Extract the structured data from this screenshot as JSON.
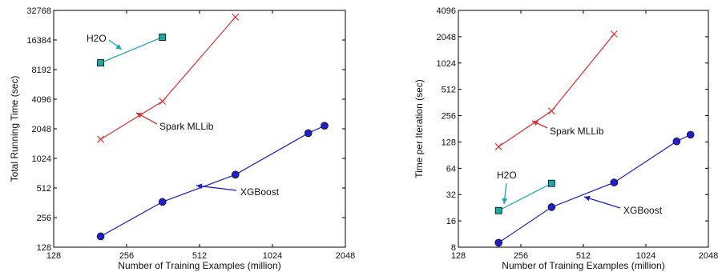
{
  "chart_data": [
    {
      "type": "line",
      "xlabel": "Number of Training Examples (million)",
      "ylabel": "Total Running Time (sec)",
      "x_scale": "log2",
      "y_scale": "log2",
      "xlim": [
        128,
        2048
      ],
      "ylim": [
        128,
        32768
      ],
      "x_ticks": [
        "128",
        "256",
        "512",
        "1024",
        "2048"
      ],
      "y_ticks": [
        "128",
        "256",
        "512",
        "1024",
        "2048",
        "4096",
        "8192",
        "16384",
        "32768"
      ],
      "series": [
        {
          "name": "H2O",
          "color": "#1aa8a8",
          "marker": "square",
          "points": [
            [
              200,
              9600
            ],
            [
              360,
              17500
            ]
          ]
        },
        {
          "name": "Spark MLLib",
          "color": "#e03030",
          "marker": "x",
          "points": [
            [
              200,
              1600
            ],
            [
              360,
              3900
            ],
            [
              720,
              28000
            ]
          ]
        },
        {
          "name": "XGBoost",
          "color": "#2020c8",
          "marker": "circle",
          "points": [
            [
              200,
              165
            ],
            [
              360,
              370
            ],
            [
              720,
              700
            ],
            [
              1440,
              1850
            ],
            [
              1680,
              2200
            ]
          ]
        }
      ],
      "annotations": [
        {
          "text": "H2O",
          "series": "H2O"
        },
        {
          "text": "Spark MLLib",
          "series": "Spark MLLib"
        },
        {
          "text": "XGBoost",
          "series": "XGBoost"
        }
      ]
    },
    {
      "type": "line",
      "xlabel": "Number of Training Examples (million)",
      "ylabel": "Time per Iteration (sec)",
      "x_scale": "log2",
      "y_scale": "log2",
      "xlim": [
        128,
        2048
      ],
      "ylim": [
        8,
        4096
      ],
      "x_ticks": [
        "128",
        "256",
        "512",
        "1024",
        "2048"
      ],
      "y_ticks": [
        "8",
        "16",
        "32",
        "64",
        "128",
        "256",
        "512",
        "1024",
        "2048",
        "4096"
      ],
      "series": [
        {
          "name": "H2O",
          "color": "#1aa8a8",
          "marker": "square",
          "points": [
            [
              200,
              21
            ],
            [
              360,
              43
            ]
          ]
        },
        {
          "name": "Spark MLLib",
          "color": "#e03030",
          "marker": "x",
          "points": [
            [
              200,
              113
            ],
            [
              360,
              290
            ],
            [
              720,
              2200
            ]
          ]
        },
        {
          "name": "XGBoost",
          "color": "#2020c8",
          "marker": "circle",
          "points": [
            [
              200,
              9
            ],
            [
              360,
              23
            ],
            [
              720,
              44
            ],
            [
              1440,
              130
            ],
            [
              1680,
              155
            ]
          ]
        }
      ],
      "annotations": [
        {
          "text": "H2O",
          "series": "H2O"
        },
        {
          "text": "Spark MLLib",
          "series": "Spark MLLib"
        },
        {
          "text": "XGBoost",
          "series": "XGBoost"
        }
      ]
    }
  ]
}
